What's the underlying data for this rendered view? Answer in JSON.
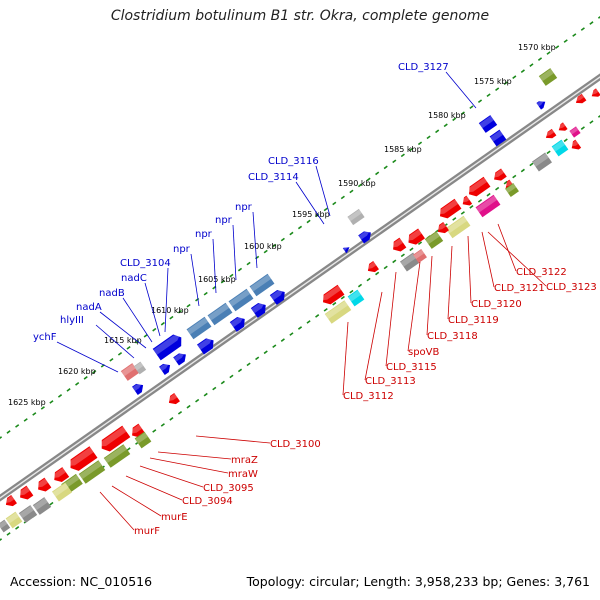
{
  "title": "Clostridium botulinum B1 str. Okra, complete genome",
  "footer": {
    "accession": "Accession: NC_010516",
    "summary": "Topology: circular; Length: 3,958,233 bp; Genes: 3,761"
  },
  "colors": {
    "label_blue": "#0000cc",
    "label_red": "#cc0000",
    "backbone": "#888888",
    "tick": "#1b8a1b",
    "gene_red": "#ee0000",
    "gene_blue": "#0000dd",
    "steelblue": "#4a7fb5",
    "olive": "#7a9a2a",
    "khaki": "#d8d880",
    "gray": "#8a8a8a",
    "cyan": "#00d8e8",
    "magenta": "#e0108a",
    "pink": "#f08080"
  },
  "scale_labels": [
    "1570 kbp",
    "1575 kbp",
    "1580 kbp",
    "1585 kbp",
    "1590 kbp",
    "1595 kbp",
    "1600 kbp",
    "1605 kbp",
    "1610 kbp",
    "1615 kbp",
    "1620 kbp",
    "1625 kbp"
  ],
  "blue_labels": [
    "CLD_3127",
    "CLD_3116",
    "CLD_3114",
    "npr",
    "npr",
    "npr",
    "npr",
    "CLD_3104",
    "nadC",
    "nadB",
    "nadA",
    "hlyIII",
    "ychF"
  ],
  "red_labels": [
    "CLD_3122",
    "CLD_3121",
    "CLD_3123",
    "CLD_3120",
    "CLD_3119",
    "CLD_3118",
    "spoVB",
    "CLD_3115",
    "CLD_3113",
    "CLD_3112",
    "CLD_3100",
    "mraZ",
    "mraW",
    "CLD_3095",
    "CLD_3094",
    "murE",
    "murF"
  ]
}
